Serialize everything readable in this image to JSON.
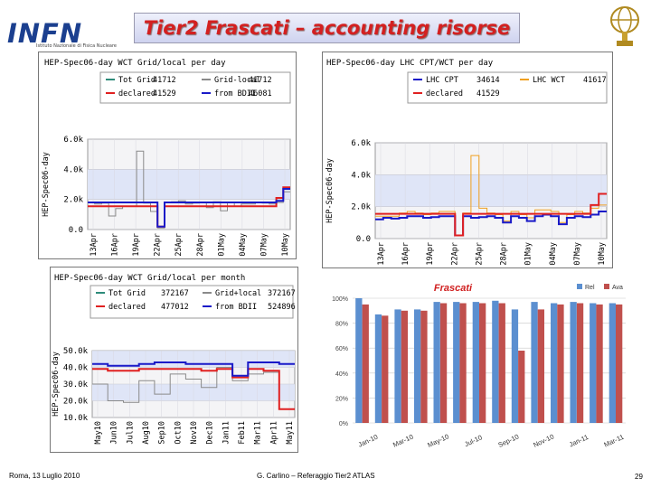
{
  "slide": {
    "title": "Tier2 Frascati – accounting risorse",
    "logo_text": "INFN",
    "logo_subtext": "Istituto Nazionale di Fisica Nucleare",
    "footer_left": "Roma, 13 Luglio 2010",
    "footer_center": "G. Carlino – Referaggio Tier2 ATLAS",
    "page_number": "29"
  },
  "chart_data": [
    {
      "id": "daily_wct",
      "type": "line",
      "title": "HEP-Spec06-day WCT Grid/local per day",
      "ylabel": "HEP-Spec06-day",
      "ylim": [
        0,
        6000
      ],
      "ytick_labels": [
        "0.0",
        "2.0k",
        "4.0k",
        "6.0k"
      ],
      "yticks": [
        0,
        2000,
        4000,
        6000
      ],
      "xtick_labels": [
        "13Apr",
        "16Apr",
        "19Apr",
        "22Apr",
        "25Apr",
        "28Apr",
        "01May",
        "04May",
        "07May",
        "10May"
      ],
      "legend": [
        {
          "label": "Tot Grid",
          "value": "41712",
          "color": "#2e8b7a"
        },
        {
          "label": "Grid-local",
          "value": "41712",
          "color": "#8a8a8a"
        },
        {
          "label": "declared",
          "value": "41529",
          "color": "#e02020"
        },
        {
          "label": "from BDII",
          "value": "46081",
          "color": "#1a1ac8"
        }
      ],
      "series": [
        {
          "color": "#8a8a8a",
          "values": [
            1800,
            1700,
            1750,
            900,
            1400,
            1550,
            1550,
            5200,
            1750,
            1200,
            100,
            1800,
            1850,
            1900,
            1700,
            1750,
            1800,
            1450,
            1850,
            1250,
            1800,
            1550,
            1700,
            1700,
            1800,
            1750,
            1700,
            1800,
            2500
          ]
        },
        {
          "color": "#e02020",
          "values": [
            1550,
            1550,
            1550,
            1550,
            1550,
            1550,
            1550,
            1550,
            1550,
            1550,
            200,
            1550,
            1550,
            1550,
            1550,
            1550,
            1550,
            1550,
            1550,
            1550,
            1550,
            1550,
            1550,
            1550,
            1550,
            1550,
            1550,
            2100,
            2800
          ]
        },
        {
          "color": "#1a1ac8",
          "values": [
            1800,
            1800,
            1800,
            1800,
            1800,
            1800,
            1800,
            1800,
            1800,
            1800,
            200,
            1800,
            1800,
            1800,
            1800,
            1800,
            1800,
            1800,
            1800,
            1800,
            1800,
            1800,
            1800,
            1800,
            1800,
            1800,
            1800,
            1900,
            2700
          ]
        }
      ]
    },
    {
      "id": "daily_lhc",
      "type": "line",
      "title": "HEP-Spec06-day LHC CPT/WCT per day",
      "ylabel": "HEP-Spec06-day",
      "ylim": [
        0,
        6000
      ],
      "ytick_labels": [
        "0.0",
        "2.0k",
        "4.0k",
        "6.0k"
      ],
      "yticks": [
        0,
        2000,
        4000,
        6000
      ],
      "xtick_labels": [
        "13Apr",
        "16Apr",
        "19Apr",
        "22Apr",
        "25Apr",
        "28Apr",
        "01May",
        "04May",
        "07May",
        "10May"
      ],
      "legend": [
        {
          "label": "LHC CPT",
          "value": "34614",
          "color": "#1a1ac8"
        },
        {
          "label": "LHC WCT",
          "value": "41617",
          "color": "#f0a020"
        },
        {
          "label": "declared",
          "value": "41529",
          "color": "#e02020"
        }
      ],
      "series": [
        {
          "color": "#f0a020",
          "values": [
            1400,
            1400,
            1400,
            1600,
            1700,
            1600,
            1500,
            1600,
            1700,
            1700,
            200,
            1600,
            5200,
            1900,
            1600,
            1500,
            1100,
            1700,
            1500,
            1300,
            1800,
            1800,
            1700,
            1000,
            1500,
            1700,
            1600,
            1900,
            2100
          ]
        },
        {
          "color": "#1a1ac8",
          "values": [
            1200,
            1300,
            1250,
            1300,
            1400,
            1400,
            1300,
            1350,
            1400,
            1400,
            200,
            1400,
            1300,
            1350,
            1400,
            1300,
            1000,
            1400,
            1300,
            1100,
            1400,
            1500,
            1400,
            900,
            1300,
            1400,
            1350,
            1500,
            1700
          ]
        },
        {
          "color": "#e02020",
          "values": [
            1550,
            1550,
            1550,
            1550,
            1550,
            1550,
            1550,
            1550,
            1550,
            1550,
            200,
            1550,
            1550,
            1550,
            1550,
            1550,
            1550,
            1550,
            1550,
            1550,
            1550,
            1550,
            1550,
            1550,
            1550,
            1550,
            1550,
            2100,
            2800
          ]
        }
      ]
    },
    {
      "id": "monthly_wct",
      "type": "line",
      "title": "HEP-Spec06-day WCT Grid/local per month",
      "ylabel": "HEP-Spec06-day",
      "ylim": [
        10000,
        50000
      ],
      "ytick_labels": [
        "10.0k",
        "20.0k",
        "30.0k",
        "40.0k",
        "50.0k"
      ],
      "yticks": [
        10000,
        20000,
        30000,
        40000,
        50000
      ],
      "xtick_labels": [
        "May10",
        "Jun10",
        "Jul10",
        "Aug10",
        "Sep10",
        "Oct10",
        "Nov10",
        "Dec10",
        "Jan11",
        "Feb11",
        "Mar11",
        "Apr11",
        "May11"
      ],
      "legend": [
        {
          "label": "Tot Grid",
          "value": "372167",
          "color": "#2e8b7a"
        },
        {
          "label": "Grid+local",
          "value": "372167",
          "color": "#8a8a8a"
        },
        {
          "label": "declared",
          "value": "477012",
          "color": "#e02020"
        },
        {
          "label": "from BDII",
          "value": "524896",
          "color": "#1a1ac8"
        }
      ],
      "series": [
        {
          "color": "#8a8a8a",
          "values": [
            30000,
            20000,
            19000,
            32000,
            24000,
            36000,
            33000,
            28000,
            40000,
            32000,
            36000,
            37000,
            15000
          ]
        },
        {
          "color": "#e02020",
          "values": [
            39000,
            38000,
            38000,
            39000,
            39000,
            39000,
            39000,
            38000,
            39000,
            34000,
            39000,
            38000,
            15000
          ]
        },
        {
          "color": "#1a1ac8",
          "values": [
            42000,
            41000,
            41000,
            42000,
            43000,
            43000,
            42000,
            42000,
            42000,
            35000,
            43000,
            43000,
            42000
          ]
        }
      ]
    },
    {
      "id": "frascati_bar",
      "type": "bar",
      "title": "Frascati",
      "ylim": [
        0,
        100
      ],
      "ytick_labels": [
        "0%",
        "20%",
        "40%",
        "60%",
        "80%",
        "100%"
      ],
      "yticks": [
        0,
        20,
        40,
        60,
        80,
        100
      ],
      "xtick_labels": [
        "Jan-10",
        "Mar-10",
        "May-10",
        "Jul-10",
        "Sep-10",
        "Nov-10",
        "Jan-11",
        "Mar-11"
      ],
      "legend_position": "top-right",
      "series": [
        {
          "name": "Rel",
          "color": "#5b8fd0",
          "values": [
            100,
            87,
            91,
            91,
            97,
            97,
            97,
            98,
            91,
            97,
            96,
            97,
            96,
            96
          ]
        },
        {
          "name": "Ava",
          "color": "#c0504d",
          "values": [
            95,
            86,
            90,
            90,
            96,
            96,
            96,
            96,
            58,
            91,
            95,
            96,
            95,
            95
          ]
        }
      ]
    }
  ]
}
